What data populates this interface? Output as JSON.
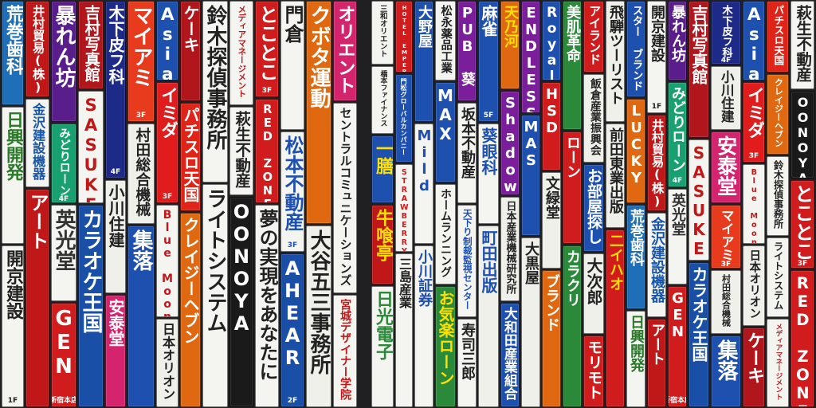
{
  "signs": [
    {
      "text": "荒巻歯科",
      "sub": "",
      "bg": "#1f6fb8",
      "fg": "#ffffff"
    },
    {
      "text": "日興開発",
      "sub": "",
      "bg": "#f4f4f0",
      "fg": "#2a7a2a"
    },
    {
      "text": "開京建設",
      "sub": "1F",
      "bg": "#f4f4f0",
      "fg": "#222222"
    },
    {
      "text": "井村貿易(株)",
      "sub": "",
      "bg": "#c01818",
      "fg": "#ffffff"
    },
    {
      "text": "金沢建設機器",
      "sub": "",
      "bg": "#f4f4f0",
      "fg": "#1a56a8"
    },
    {
      "text": "アート",
      "sub": "",
      "bg": "#c01818",
      "fg": "#ffffff"
    },
    {
      "text": "暴れん坊",
      "sub": "",
      "bg": "#5a1e8c",
      "fg": "#ffffff"
    },
    {
      "text": "みどりローン",
      "sub": "4F",
      "bg": "#18a070",
      "fg": "#ffffff"
    },
    {
      "text": "英光堂",
      "sub": "",
      "bg": "#f4f4f0",
      "fg": "#333333"
    },
    {
      "text": "GEN",
      "sub": "新宿本店",
      "bg": "#d01c1c",
      "fg": "#ffffff"
    },
    {
      "text": "吉村写真館",
      "sub": "",
      "bg": "#b0161c",
      "fg": "#ffffff"
    },
    {
      "text": "SASUKE",
      "sub": "",
      "bg": "#f4f4f0",
      "fg": "#c01818"
    },
    {
      "text": "カラオケ王国",
      "sub": "",
      "bg": "#1a4fa8",
      "fg": "#ffffff"
    },
    {
      "text": "木下皮フ科",
      "sub": "4F",
      "bg": "#1e2a88",
      "fg": "#ffffff"
    },
    {
      "text": "小川住建",
      "sub": "",
      "bg": "#f0f0ea",
      "fg": "#222222"
    },
    {
      "text": "安泰堂",
      "sub": "",
      "bg": "#d4246e",
      "fg": "#ffffff"
    },
    {
      "text": "マイアミ",
      "sub": "3F",
      "bg": "#e83a1c",
      "fg": "#ffffff"
    },
    {
      "text": "村田総合機械",
      "sub": "",
      "bg": "#f0f0ea",
      "fg": "#222222"
    },
    {
      "text": "集落",
      "sub": "",
      "bg": "#1e50b0",
      "fg": "#ffffff"
    },
    {
      "text": "Asia",
      "sub": "",
      "bg": "#1e50b0",
      "fg": "#ffffff"
    },
    {
      "text": "イミダ",
      "sub": "3F",
      "bg": "#e01c1c",
      "fg": "#ffffff"
    },
    {
      "text": "Blue Moon",
      "sub": "",
      "bg": "#f4f4f0",
      "fg": "#c01818"
    },
    {
      "text": "日本オリオン",
      "sub": "",
      "bg": "#f0f0ea",
      "fg": "#222222"
    },
    {
      "text": "ケーキ",
      "sub": "",
      "bg": "#b0161c",
      "fg": "#ffffff"
    },
    {
      "text": "パチスロ天国",
      "sub": "",
      "bg": "#e02418",
      "fg": "#ffffff"
    },
    {
      "text": "クレイジーヘブン",
      "sub": "",
      "bg": "#e06810",
      "fg": "#ffffff"
    },
    {
      "text": "鈴木探偵事務所",
      "sub": "",
      "bg": "#f4f4f0",
      "fg": "#222222"
    },
    {
      "text": "ライトシステム",
      "sub": "",
      "bg": "#f4f4f0",
      "fg": "#222222"
    },
    {
      "text": "メディアマネージメント",
      "sub": "",
      "bg": "#f4f4f0",
      "fg": "#c01818"
    },
    {
      "text": "萩生不動産",
      "sub": "",
      "bg": "#f4f4f0",
      "fg": "#222222"
    },
    {
      "text": "OONOYA",
      "sub": "",
      "bg": "#1a1a1a",
      "fg": "#ffffff"
    },
    {
      "text": "とことこ",
      "sub": "3F",
      "bg": "#d01c1c",
      "fg": "#ffffff"
    },
    {
      "text": "RED ZONE",
      "sub": "",
      "bg": "#d01c1c",
      "fg": "#ffffff"
    },
    {
      "text": "夢の実現をあなたに",
      "sub": "",
      "bg": "#f4f4f0",
      "fg": "#222222"
    },
    {
      "text": "門倉",
      "sub": "",
      "bg": "#f4f4f0",
      "fg": "#222222"
    },
    {
      "text": "松本不動産",
      "sub": "3F",
      "bg": "#f4f4f0",
      "fg": "#1e50b0"
    },
    {
      "text": "AHEAR",
      "sub": "2F",
      "bg": "#1a4fa8",
      "fg": "#ffffff"
    },
    {
      "text": "クボタ運動",
      "sub": "",
      "bg": "#e06810",
      "fg": "#ffffff"
    },
    {
      "text": "大谷五三事務所",
      "sub": "",
      "bg": "#f0f0ea",
      "fg": "#222222"
    },
    {
      "text": "オリエント",
      "sub": "",
      "bg": "#d4246e",
      "fg": "#ffffff"
    },
    {
      "text": "セントラルコミュニケーションズ",
      "sub": "",
      "bg": "#f4f4f0",
      "fg": "#222222"
    },
    {
      "text": "宮城デザイナー学院",
      "sub": "",
      "bg": "#f4f4f0",
      "fg": "#c01818"
    },
    {
      "text": "三和オリエント",
      "sub": "",
      "bg": "#f4f4f0",
      "fg": "#222222"
    },
    {
      "text": "橋本ファイナンス",
      "sub": "",
      "bg": "#f4f4f0",
      "fg": "#222222"
    },
    {
      "text": "一膳",
      "sub": "",
      "bg": "#1e50b0",
      "fg": "#ffe000"
    },
    {
      "text": "牛喰亭",
      "sub": "",
      "bg": "#c01818",
      "fg": "#ffe000"
    },
    {
      "text": "日光電子",
      "sub": "",
      "bg": "#f4f4f0",
      "fg": "#2a8a3a"
    },
    {
      "text": "HOTEL EMPEROR",
      "sub": "",
      "bg": "#d01c1c",
      "fg": "#ffffff"
    },
    {
      "text": "門松グローバルカンパニー",
      "sub": "",
      "bg": "#1e50b0",
      "fg": "#ffffff"
    },
    {
      "text": "STRAWBERRY",
      "sub": "",
      "bg": "#f4f4f0",
      "fg": "#d01c1c"
    },
    {
      "text": "三島産業",
      "sub": "",
      "bg": "#f4f4f0",
      "fg": "#222222"
    },
    {
      "text": "大野屋",
      "sub": "",
      "bg": "#1e50b0",
      "fg": "#ffffff"
    },
    {
      "text": "Mild",
      "sub": "",
      "bg": "#f4f4f0",
      "fg": "#1e50b0"
    },
    {
      "text": "小川証券",
      "sub": "",
      "bg": "#f4f4f0",
      "fg": "#1e50b0"
    },
    {
      "text": "松永薬品工業",
      "sub": "",
      "bg": "#f4f4f0",
      "fg": "#222222"
    },
    {
      "text": "MAX",
      "sub": "",
      "bg": "#1e50b0",
      "fg": "#ffffff"
    },
    {
      "text": "ホームランニング",
      "sub": "",
      "bg": "#f4f4f0",
      "fg": "#222222"
    },
    {
      "text": "お気楽ローン",
      "sub": "",
      "bg": "#2a8a3a",
      "fg": "#ffe000"
    },
    {
      "text": "PUB 葵",
      "sub": "",
      "bg": "#7a1e9c",
      "fg": "#ffffff"
    },
    {
      "text": "坂本不動産",
      "sub": "",
      "bg": "#f4f4f0",
      "fg": "#222222"
    },
    {
      "text": "天下り制裁監視センター",
      "sub": "",
      "bg": "#f4f4f0",
      "fg": "#1e50b0"
    },
    {
      "text": "寿司三郎",
      "sub": "",
      "bg": "#f4f4f0",
      "fg": "#222222"
    },
    {
      "text": "麻雀",
      "sub": "5F",
      "bg": "#1e50b0",
      "fg": "#ffffff"
    },
    {
      "text": "葵眼科",
      "sub": "",
      "bg": "#f4f4f0",
      "fg": "#1e50b0"
    },
    {
      "text": "町田出版",
      "sub": "",
      "bg": "#f0f0ea",
      "fg": "#1e50b0"
    },
    {
      "text": "天乃河",
      "sub": "",
      "bg": "#e06810",
      "fg": "#ffe000"
    },
    {
      "text": "Shadow",
      "sub": "",
      "bg": "#7a1e9c",
      "fg": "#ffffff"
    },
    {
      "text": "日本産業機械研究所",
      "sub": "",
      "bg": "#f0f0ea",
      "fg": "#222222"
    },
    {
      "text": "大和田産業組合",
      "sub": "",
      "bg": "#1e50b0",
      "fg": "#ffffff"
    },
    {
      "text": "ENDLESS",
      "sub": "",
      "bg": "#7a1e9c",
      "fg": "#ffffff"
    },
    {
      "text": "MAS",
      "sub": "",
      "bg": "#1e50b0",
      "fg": "#ffffff"
    },
    {
      "text": "大黒屋",
      "sub": "",
      "bg": "#f0f0ea",
      "fg": "#222222"
    },
    {
      "text": "Royal",
      "sub": "",
      "bg": "#1e50b0",
      "fg": "#ffffff"
    },
    {
      "text": "HSD",
      "sub": "",
      "bg": "#d01c1c",
      "fg": "#ffffff"
    },
    {
      "text": "文緑堂",
      "sub": "",
      "bg": "#f0f0ea",
      "fg": "#222222"
    },
    {
      "text": "ブランド",
      "sub": "",
      "bg": "#e06810",
      "fg": "#ffffff"
    },
    {
      "text": "美肌革命",
      "sub": "",
      "bg": "#2a8a3a",
      "fg": "#ffffff"
    },
    {
      "text": "ローン",
      "sub": "",
      "bg": "#d01c1c",
      "fg": "#ffffff"
    },
    {
      "text": "カラクリ",
      "sub": "",
      "bg": "#2a8a3a",
      "fg": "#ffffff"
    },
    {
      "text": "アイランド",
      "sub": "",
      "bg": "#d01c1c",
      "fg": "#ffffff"
    },
    {
      "text": "飯倉産業振興会",
      "sub": "",
      "bg": "#f0f0ea",
      "fg": "#222222"
    },
    {
      "text": "お部屋探し",
      "sub": "",
      "bg": "#1e50b0",
      "fg": "#ffffff"
    },
    {
      "text": "大次郎",
      "sub": "",
      "bg": "#f0f0ea",
      "fg": "#222222"
    },
    {
      "text": "モリモト",
      "sub": "",
      "bg": "#d01c1c",
      "fg": "#ffffff"
    },
    {
      "text": "飛騨ツーリスト",
      "sub": "",
      "bg": "#f0f0ea",
      "fg": "#222222"
    },
    {
      "text": "前田東業出版",
      "sub": "",
      "bg": "#f0f0ea",
      "fg": "#222222"
    },
    {
      "text": "二イハオ",
      "sub": "",
      "bg": "#d01c1c",
      "fg": "#ffe000"
    },
    {
      "text": "スター ブランド",
      "sub": "",
      "bg": "#1e50b0",
      "fg": "#ffffff"
    },
    {
      "text": "LUCKY",
      "sub": "",
      "bg": "#e06810",
      "fg": "#ffffff"
    }
  ]
}
